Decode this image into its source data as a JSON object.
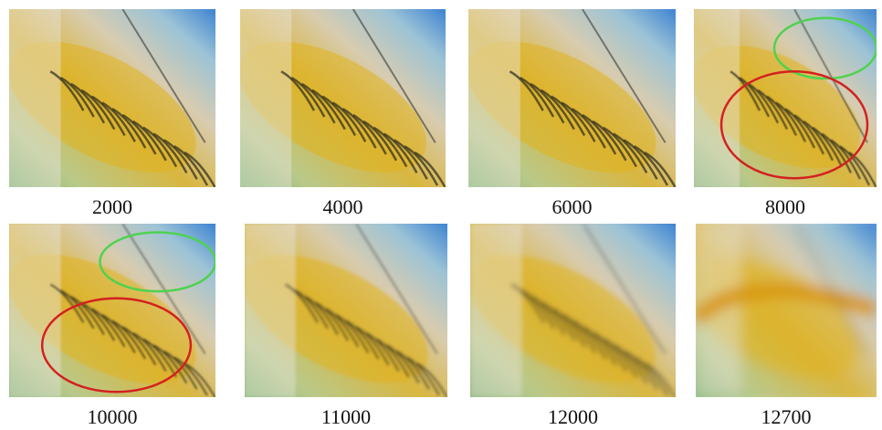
{
  "panels": [
    {
      "caption": "2000"
    },
    {
      "caption": "4000"
    },
    {
      "caption": "6000"
    },
    {
      "caption": "8000"
    },
    {
      "caption": "10000"
    },
    {
      "caption": "11000"
    },
    {
      "caption": "12000"
    },
    {
      "caption": "12700"
    }
  ]
}
